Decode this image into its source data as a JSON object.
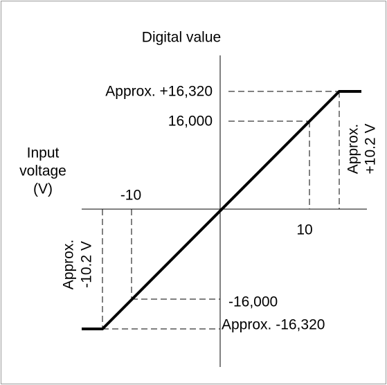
{
  "diagram": {
    "y_axis_title": "Digital value",
    "x_axis_title": [
      "Input",
      "voltage",
      "(V)"
    ],
    "y_labels": [
      "Approx. +16,320",
      "16,000",
      "-16,000",
      "Approx. -16,320"
    ],
    "x_labels": [
      "-10",
      "10"
    ],
    "right_note": [
      "Approx.",
      "+10.2 V"
    ],
    "left_note": [
      "Approx.",
      "-10.2 V"
    ]
  }
}
